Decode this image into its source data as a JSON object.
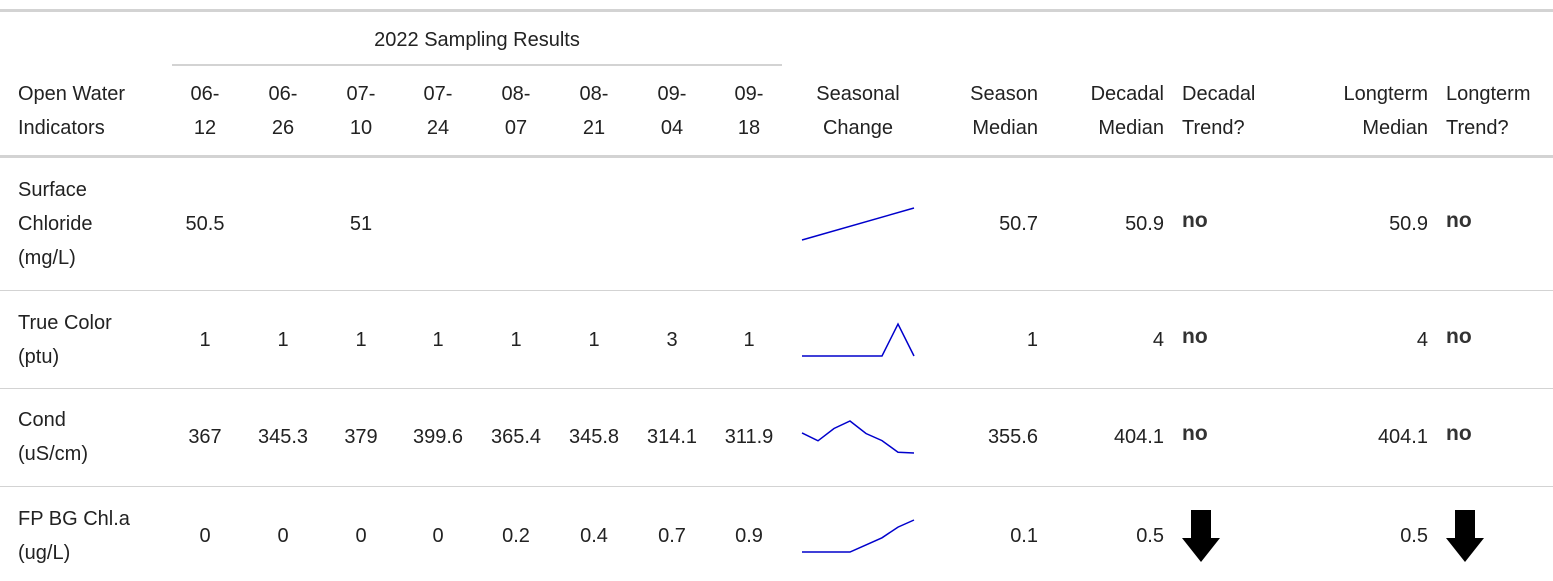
{
  "header": {
    "group_title": "2022 Sampling Results",
    "indicator": "Open Water\nIndicators",
    "dates": [
      "06-12",
      "06-26",
      "07-10",
      "07-24",
      "08-07",
      "08-21",
      "09-04",
      "09-18"
    ],
    "seasonal_change": "Seasonal\nChange",
    "season_median": "Season\nMedian",
    "decadal_median": "Decadal\nMedian",
    "decadal_trend": "Decadal\nTrend?",
    "longterm_median": "Longterm\nMedian",
    "longterm_trend": "Longterm\nTrend?"
  },
  "rows": [
    {
      "label": "Surface\nChloride\n(mg/L)",
      "values": [
        50.5,
        null,
        51,
        null,
        null,
        null,
        null,
        null
      ],
      "season_median": 50.7,
      "decadal_median": 50.9,
      "decadal_trend": "no",
      "longterm_median": 50.9,
      "longterm_trend": "no"
    },
    {
      "label": "True Color\n(ptu)",
      "values": [
        1,
        1,
        1,
        1,
        1,
        1,
        3,
        1
      ],
      "season_median": 1,
      "decadal_median": 4,
      "decadal_trend": "no",
      "longterm_median": 4,
      "longterm_trend": "no"
    },
    {
      "label": "Cond\n(uS/cm)",
      "values": [
        367,
        345.3,
        379,
        399.6,
        365.4,
        345.8,
        314.1,
        311.9
      ],
      "season_median": 355.6,
      "decadal_median": 404.1,
      "decadal_trend": "no",
      "longterm_median": 404.1,
      "longterm_trend": "no"
    },
    {
      "label": "FP BG Chl.a\n(ug/L)",
      "values": [
        0,
        0,
        0,
        0,
        0.2,
        0.4,
        0.7,
        0.9
      ],
      "season_median": 0.1,
      "decadal_median": 0.5,
      "decadal_trend_arrow": "down",
      "longterm_median": 0.5,
      "longterm_trend_arrow": "down"
    }
  ]
}
